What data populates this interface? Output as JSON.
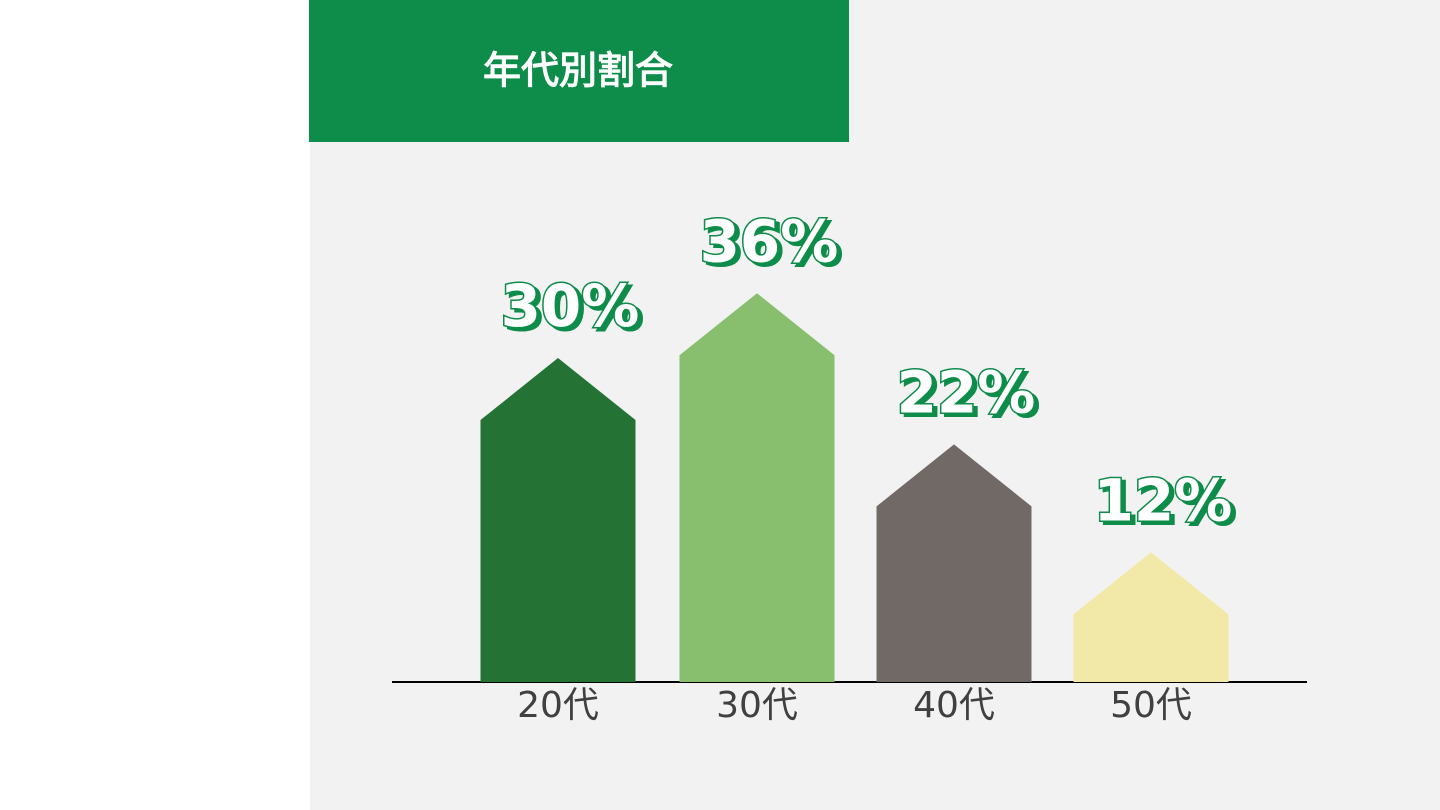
{
  "chart_data": {
    "type": "bar",
    "title": "年代別割合",
    "categories": [
      "20代",
      "30代",
      "40代",
      "50代"
    ],
    "values": [
      30,
      36,
      22,
      12
    ],
    "value_labels": [
      "30%",
      "36%",
      "22%",
      "12%"
    ],
    "colors": [
      "#247335",
      "#88bf6e",
      "#716965",
      "#f2e8a7"
    ]
  }
}
